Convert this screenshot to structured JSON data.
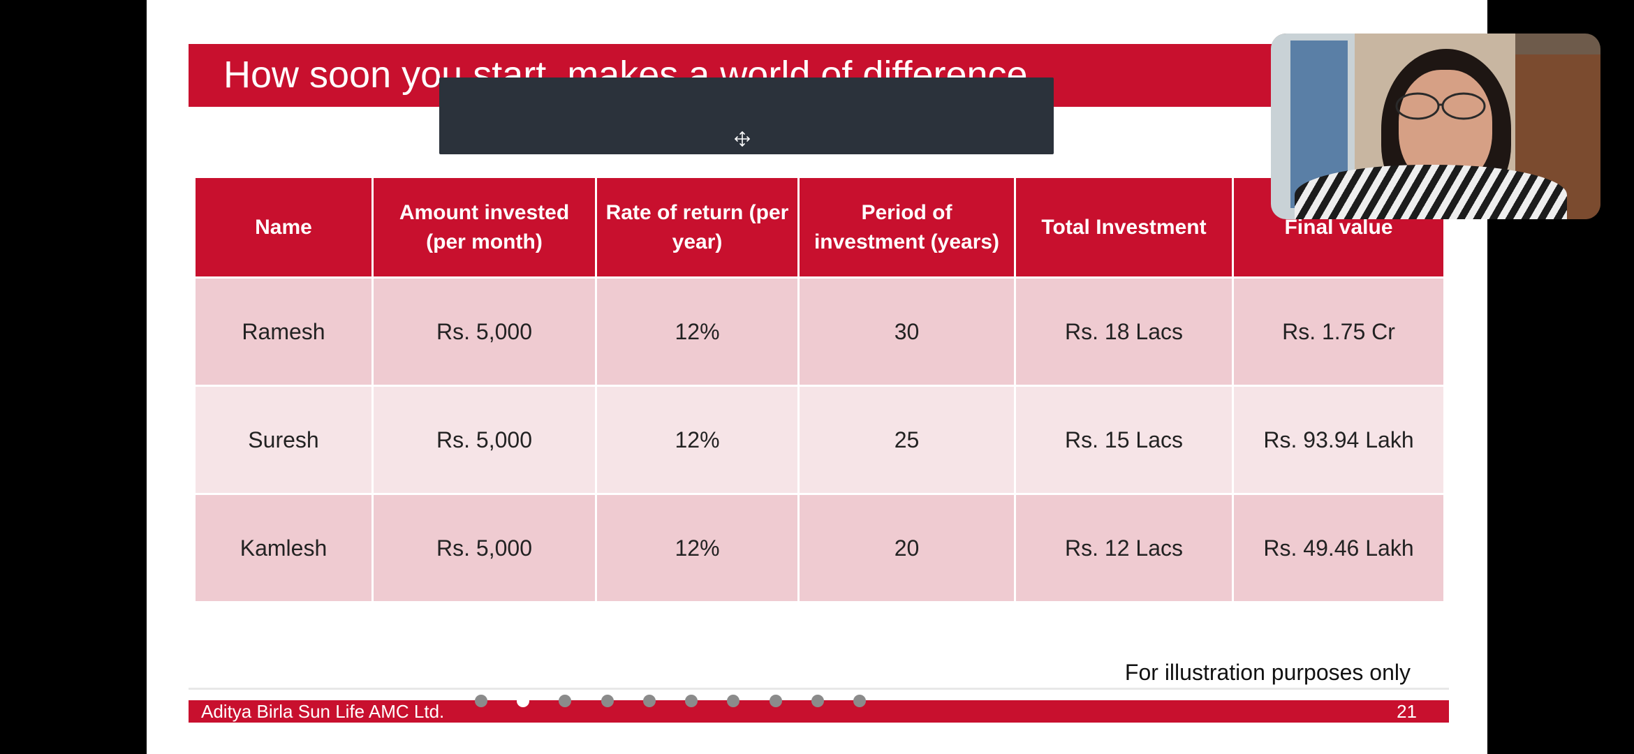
{
  "slide": {
    "title": "How soon you start, makes a world of difference",
    "table": {
      "headers": [
        "Name",
        "Amount invested (per month)",
        "Rate of return (per year)",
        "Period of investment (years)",
        "Total Investment",
        "Final value"
      ],
      "rows": [
        [
          "Ramesh",
          "Rs. 5,000",
          "12%",
          "30",
          "Rs. 18 Lacs",
          "Rs. 1.75 Cr"
        ],
        [
          "Suresh",
          "Rs. 5,000",
          "12%",
          "25",
          "Rs. 15 Lacs",
          "Rs. 93.94 Lakh"
        ],
        [
          "Kamlesh",
          "Rs. 5,000",
          "12%",
          "20",
          "Rs. 12 Lacs",
          "Rs. 49.46 Lakh"
        ]
      ]
    },
    "note": "For illustration purposes only",
    "footer": {
      "company": "Aditya Birla Sun Life AMC Ltd.",
      "page_number": "21"
    }
  },
  "pager": {
    "count": 10,
    "active_index": 1
  },
  "colors": {
    "brand_red": "#c8102e",
    "row_dark": "#efcbd1",
    "row_light": "#f6e4e7",
    "overlay": "#2b323b"
  },
  "icons": {
    "overlay": "move-icon",
    "video": "participant-video-thumbnail"
  }
}
